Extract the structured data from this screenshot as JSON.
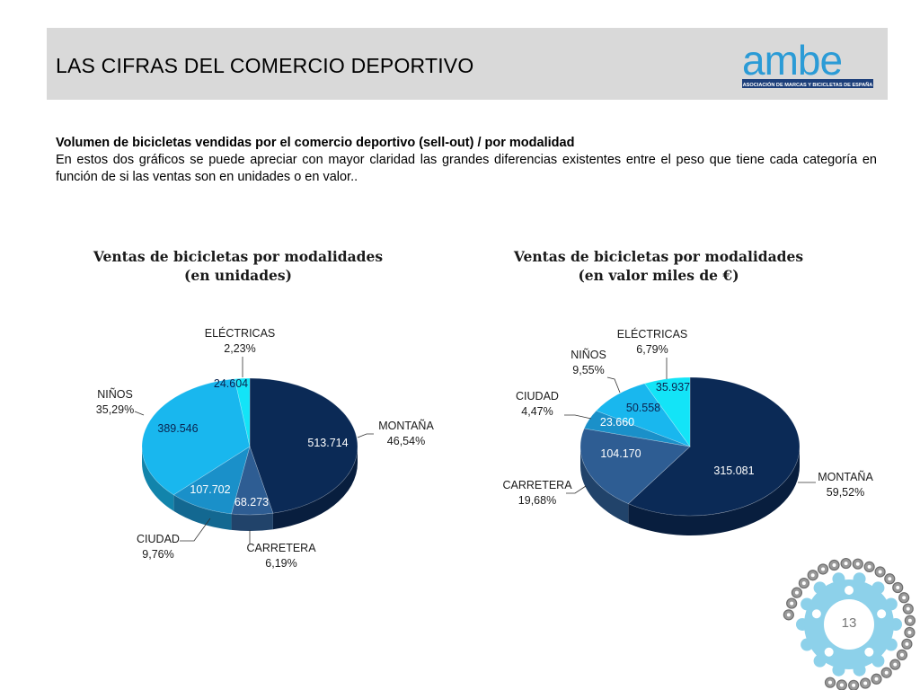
{
  "header": {
    "title": "LAS CIFRAS DEL COMERCIO DEPORTIVO",
    "logo_text": "ambe",
    "logo_subtext": "ASOCIACIÓN DE MARCAS Y BICICLETAS DE ESPAÑA"
  },
  "intro": {
    "heading": "Volumen de bicicletas vendidas por el comercio deportivo (sell-out) / por modalidad",
    "body": "En estos dos gráficos se puede apreciar con mayor claridad las grandes diferencias existentes entre el peso que tiene cada categoría en función de si las ventas son en unidades o en valor.."
  },
  "page_number": "13",
  "colors": {
    "montana": "#0b2a56",
    "carretera": "#2e5d93",
    "ciudad": "#1a90c9",
    "ninos": "#19b7ee",
    "electricas": "#13e4f7",
    "header_bg": "#d9d9d9",
    "logo_blue": "#2b9bd6",
    "gear": "#8dd1ea"
  },
  "chart_data": [
    {
      "type": "pie",
      "title_line1": "Ventas de bicicletas por modalidades",
      "title_line2": "(en unidades)",
      "slices": [
        {
          "category": "MONTAÑA",
          "value": 513714,
          "value_label": "513.714",
          "percent": 46.54,
          "percent_label": "46,54%",
          "color": "#0b2a56"
        },
        {
          "category": "CARRETERA",
          "value": 68273,
          "value_label": "68.273",
          "percent": 6.19,
          "percent_label": "6,19%",
          "color": "#2e5d93"
        },
        {
          "category": "CIUDAD",
          "value": 107702,
          "value_label": "107.702",
          "percent": 9.76,
          "percent_label": "9,76%",
          "color": "#1a90c9"
        },
        {
          "category": "NIÑOS",
          "value": 389546,
          "value_label": "389.546",
          "percent": 35.29,
          "percent_label": "35,29%",
          "color": "#19b7ee"
        },
        {
          "category": "ELÉCTRICAS",
          "value": 24604,
          "value_label": "24.604",
          "percent": 2.23,
          "percent_label": "2,23%",
          "color": "#13e4f7"
        }
      ]
    },
    {
      "type": "pie",
      "title_line1": "Ventas de bicicletas por modalidades",
      "title_line2": "(en valor miles de €)",
      "slices": [
        {
          "category": "MONTAÑA",
          "value": 315081,
          "value_label": "315.081",
          "percent": 59.52,
          "percent_label": "59,52%",
          "color": "#0b2a56"
        },
        {
          "category": "CARRETERA",
          "value": 104170,
          "value_label": "104.170",
          "percent": 19.68,
          "percent_label": "19,68%",
          "color": "#2e5d93"
        },
        {
          "category": "CIUDAD",
          "value": 23660,
          "value_label": "23.660",
          "percent": 4.47,
          "percent_label": "4,47%",
          "color": "#1a90c9"
        },
        {
          "category": "NIÑOS",
          "value": 50558,
          "value_label": "50.558",
          "percent": 9.55,
          "percent_label": "9,55%",
          "color": "#19b7ee"
        },
        {
          "category": "ELÉCTRICAS",
          "value": 35937,
          "value_label": "35.937",
          "percent": 6.79,
          "percent_label": "6,79%",
          "color": "#13e4f7"
        }
      ]
    }
  ]
}
